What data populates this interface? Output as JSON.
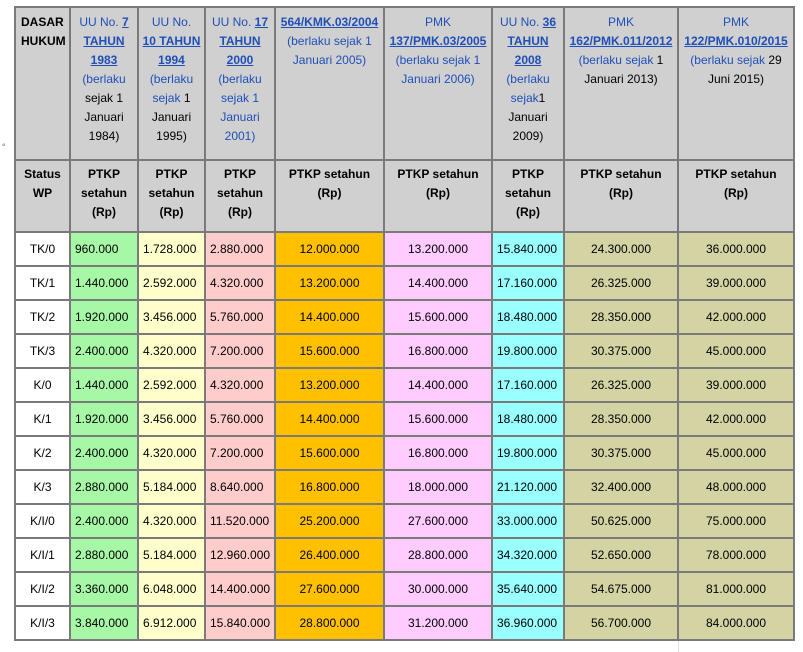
{
  "bullet": "◦",
  "colors": {
    "green": "#a6f8a6",
    "yellow": "#ffffcc",
    "pink": "#ffcccc",
    "orange": "#ffc000",
    "lilac": "#ffccff",
    "cyan": "#99ffff",
    "olive": "#d3d3a3",
    "header_gray": "#d0d0d0",
    "link": "#1f4fb8"
  },
  "header": {
    "basis_label_1": "DASAR",
    "basis_label_2": "HUKUM",
    "columns": [
      {
        "l1": "UU No.",
        "a1": "7",
        "a2": "TAHUN",
        "a3": "1983",
        "n": [
          "(berlaku",
          "sejak 1",
          "Januari",
          "1984)"
        ]
      },
      {
        "l1": "UU No.",
        "a1": "10 TAHUN",
        "a2": "1994",
        "n": [
          "(berlaku",
          "sejak",
          "1",
          "Januari",
          "1995)"
        ]
      },
      {
        "l1": "UU No.",
        "a1": "17",
        "a2": "TAHUN",
        "a3": "2000",
        "n": [
          "(berlaku",
          "sejak 1",
          "Januari",
          "2001)"
        ]
      },
      {
        "a1": "564/KMK.03/2004",
        "n": [
          "(berlaku sejak 1",
          "Januari 2005)"
        ]
      },
      {
        "l1": "PMK",
        "a1": "137/PMK.03/2005",
        "n": [
          "(berlaku sejak 1",
          "Januari 2006)"
        ]
      },
      {
        "l1": "UU No.",
        "a1": "36",
        "a2": "TAHUN",
        "a3": "2008",
        "n": [
          "(berlaku",
          "sejak",
          "1",
          "Januari",
          "2009)"
        ]
      },
      {
        "l1": "PMK",
        "a1": "162/PMK.011/2012",
        "n": [
          "(berlaku sejak",
          "1",
          "Januari 2013)"
        ]
      },
      {
        "l1": "PMK",
        "a1": "122/PMK.010/2015",
        "n": [
          "(berlaku sejak",
          "29",
          "Juni 2015)"
        ]
      }
    ],
    "status_label_1": "Status",
    "status_label_2": "WP",
    "ptkp_narrow": [
      "PTKP",
      "setahun",
      "(Rp)"
    ],
    "ptkp_wide": [
      "PTKP setahun",
      "(Rp)"
    ]
  },
  "rows": [
    {
      "status": "TK/0",
      "v": [
        "960.000",
        "1.728.000",
        "2.880.000",
        "12.000.000",
        "13.200.000",
        "15.840.000",
        "24.300.000",
        "36.000.000"
      ]
    },
    {
      "status": "TK/1",
      "v": [
        "1.440.000",
        "2.592.000",
        "4.320.000",
        "13.200.000",
        "14.400.000",
        "17.160.000",
        "26.325.000",
        "39.000.000"
      ]
    },
    {
      "status": "TK/2",
      "v": [
        "1.920.000",
        "3.456.000",
        "5.760.000",
        "14.400.000",
        "15.600.000",
        "18.480.000",
        "28.350.000",
        "42.000.000"
      ]
    },
    {
      "status": "TK/3",
      "v": [
        "2.400.000",
        "4.320.000",
        "7.200.000",
        "15.600.000",
        "16.800.000",
        "19.800.000",
        "30.375.000",
        "45.000.000"
      ]
    },
    {
      "status": "K/0",
      "v": [
        "1.440.000",
        "2.592.000",
        "4.320.000",
        "13.200.000",
        "14.400.000",
        "17.160.000",
        "26.325.000",
        "39.000.000"
      ]
    },
    {
      "status": "K/1",
      "v": [
        "1.920.000",
        "3.456.000",
        "5.760.000",
        "14.400.000",
        "15.600.000",
        "18.480.000",
        "28.350.000",
        "42.000.000"
      ]
    },
    {
      "status": "K/2",
      "v": [
        "2.400.000",
        "4.320.000",
        "7.200.000",
        "15.600.000",
        "16.800.000",
        "19.800.000",
        "30.375.000",
        "45.000.000"
      ]
    },
    {
      "status": "K/3",
      "v": [
        "2.880.000",
        "5.184.000",
        "8.640.000",
        "16.800.000",
        "18.000.000",
        "21.120.000",
        "32.400.000",
        "48.000.000"
      ]
    },
    {
      "status": "K/I/0",
      "v": [
        "2.400.000",
        "4.320.000",
        "11.520.000",
        "25.200.000",
        "27.600.000",
        "33.000.000",
        "50.625.000",
        "75.000.000"
      ]
    },
    {
      "status": "K/I/1",
      "v": [
        "2.880.000",
        "5.184.000",
        "12.960.000",
        "26.400.000",
        "28.800.000",
        "34.320.000",
        "52.650.000",
        "78.000.000"
      ]
    },
    {
      "status": "K/I/2",
      "v": [
        "3.360.000",
        "6.048.000",
        "14.400.000",
        "27.600.000",
        "30.000.000",
        "35.640.000",
        "54.675.000",
        "81.000.000"
      ]
    },
    {
      "status": "K/I/3",
      "v": [
        "3.840.000",
        "6.912.000",
        "15.840.000",
        "28.800.000",
        "31.200.000",
        "36.960.000",
        "56.700.000",
        "84.000.000"
      ]
    }
  ]
}
